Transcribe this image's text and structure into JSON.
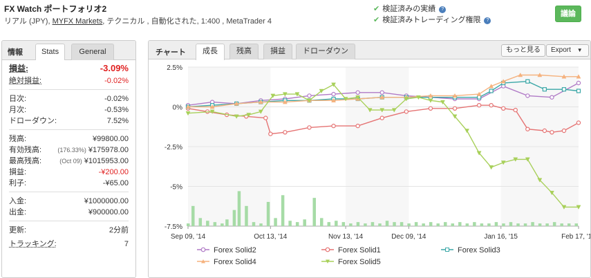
{
  "header": {
    "title": "FX Watch ポートフォリオ2",
    "sub_prefix": "リアル (JPY), ",
    "broker": "MYFX Markets",
    "sub_suffix": ", テクニカル , 自動化された, 1:400 , MetaTrader 4",
    "verified_track": "検証済みの実績",
    "verified_trading": "検証済みトレーディング権限",
    "discuss_button": "議論"
  },
  "left_panel": {
    "tab_label": "情報",
    "tabs": [
      "Stats",
      "General"
    ],
    "profit_label": "損益:",
    "profit_value": "-3.09%",
    "abs_profit_label": "絶対損益:",
    "abs_profit_value": "-0.02%",
    "daily_label": "日次:",
    "daily_value": "-0.02%",
    "monthly_label": "月次:",
    "monthly_value": "-0.53%",
    "drawdown_label": "ドローダウン:",
    "drawdown_value": "7.52%",
    "balance_label": "残高:",
    "balance_value": "¥99800.00",
    "equity_label": "有効残高:",
    "equity_pct": "(176.33%)",
    "equity_value": "¥175978.00",
    "highest_label": "最高残高:",
    "highest_date": "(Oct 09)",
    "highest_value": "¥1015953.00",
    "pl_label": "損益:",
    "pl_value": "-¥200.00",
    "interest_label": "利子:",
    "interest_value": "-¥65.00",
    "deposit_label": "入金:",
    "deposit_value": "¥1000000.00",
    "withdraw_label": "出金:",
    "withdraw_value": "¥900000.00",
    "updated_label": "更新:",
    "updated_value": "2分前",
    "tracking_label": "トラッキング:",
    "tracking_value": "7"
  },
  "right_panel": {
    "label": "チャート",
    "tabs": [
      "成長",
      "残高",
      "損益",
      "ドローダウン"
    ],
    "more_button": "もっと見る",
    "export_button": "Export"
  },
  "chart_data": {
    "type": "line",
    "ylim": [
      -7.5,
      2.5
    ],
    "y_ticks": [
      "2.5%",
      "0%",
      "-2.5%",
      "-5%",
      "-7.5%"
    ],
    "y_tick_values": [
      2.5,
      0,
      -2.5,
      -5,
      -7.5
    ],
    "x_ticks": [
      "Sep 09, '14",
      "Oct 13, '14",
      "Nov 13, '14",
      "Dec 09, '14",
      "Jan 16, '15",
      "Feb 17, '15"
    ],
    "x_tick_values": [
      0,
      34,
      65,
      91,
      129,
      161
    ],
    "colors": {
      "Forex Solid2": "#b07ac6",
      "Forex Solid1": "#e57373",
      "Forex Solid3": "#3aa7a7",
      "Forex Solid4": "#f5b27e",
      "Forex Solid5": "#a8d05a",
      "volume": "#a6dba6"
    },
    "series": [
      {
        "name": "Forex Solid2",
        "marker": "circle",
        "x": [
          0,
          10,
          20,
          30,
          40,
          50,
          60,
          70,
          80,
          90,
          100,
          110,
          120,
          130,
          140,
          150,
          161
        ],
        "values": [
          0.1,
          0.3,
          0.2,
          0.4,
          0.5,
          0.7,
          0.8,
          0.9,
          0.9,
          0.7,
          0.6,
          0.5,
          0.5,
          1.3,
          0.7,
          0.6,
          1.5
        ]
      },
      {
        "name": "Forex Solid1",
        "marker": "circle",
        "x": [
          0,
          8,
          16,
          24,
          32,
          34,
          40,
          50,
          60,
          70,
          80,
          90,
          100,
          110,
          120,
          125,
          130,
          135,
          140,
          147,
          150,
          155,
          161
        ],
        "values": [
          -0.1,
          -0.3,
          -0.5,
          -0.6,
          -0.7,
          -1.7,
          -1.6,
          -1.3,
          -1.2,
          -1.2,
          -0.7,
          -0.3,
          -0.1,
          -0.1,
          0.1,
          0.1,
          -0.1,
          -0.2,
          -1.4,
          -1.5,
          -1.6,
          -1.5,
          -1.0
        ]
      },
      {
        "name": "Forex Solid3",
        "marker": "square",
        "x": [
          0,
          10,
          20,
          30,
          40,
          50,
          60,
          70,
          80,
          90,
          100,
          110,
          120,
          125,
          130,
          140,
          147,
          155,
          161
        ],
        "values": [
          0.0,
          0.1,
          0.2,
          0.3,
          0.4,
          0.4,
          0.5,
          0.5,
          0.6,
          0.6,
          0.6,
          0.6,
          0.6,
          1.0,
          1.5,
          1.6,
          1.1,
          1.1,
          1.0
        ]
      },
      {
        "name": "Forex Solid4",
        "marker": "triangle",
        "x": [
          0,
          10,
          20,
          30,
          40,
          50,
          60,
          70,
          80,
          90,
          100,
          110,
          120,
          125,
          130,
          137,
          145,
          155,
          161
        ],
        "values": [
          0.0,
          0.0,
          0.2,
          0.3,
          0.3,
          0.4,
          0.4,
          0.5,
          0.6,
          0.6,
          0.7,
          0.7,
          0.8,
          1.3,
          1.6,
          2.0,
          2.0,
          1.9,
          1.9
        ]
      },
      {
        "name": "Forex Solid5",
        "marker": "triangle",
        "x": [
          0,
          10,
          20,
          25,
          30,
          35,
          40,
          45,
          50,
          55,
          60,
          65,
          70,
          75,
          80,
          85,
          90,
          95,
          100,
          105,
          110,
          115,
          120,
          125,
          130,
          135,
          140,
          145,
          150,
          155,
          161
        ],
        "values": [
          -0.4,
          -0.3,
          -0.6,
          -0.5,
          -0.3,
          0.7,
          0.8,
          0.8,
          0.4,
          1.0,
          1.4,
          0.5,
          0.6,
          -0.2,
          -0.2,
          -0.2,
          0.5,
          0.6,
          0.4,
          0.3,
          -0.6,
          -1.5,
          -2.9,
          -3.8,
          -3.5,
          -3.3,
          -3.3,
          -4.6,
          -5.4,
          -6.3,
          -6.3
        ]
      }
    ],
    "volume_x": [
      0,
      2,
      5,
      8,
      11,
      14,
      16,
      19,
      21,
      24,
      27,
      30,
      33,
      36,
      39,
      42,
      45,
      48,
      52,
      55,
      58,
      61,
      64,
      67,
      70,
      73,
      76,
      79,
      82,
      85,
      88,
      91,
      94,
      97,
      100,
      103,
      106,
      109,
      112,
      115,
      118,
      121,
      124,
      127,
      130,
      133,
      136,
      139,
      142,
      145,
      148,
      151,
      154,
      157,
      160
    ],
    "volume": [
      0.2,
      1.5,
      0.6,
      0.4,
      0.3,
      0.2,
      0.5,
      1.2,
      2.6,
      1.5,
      0.3,
      0.2,
      1.8,
      0.6,
      2.3,
      0.4,
      0.3,
      0.5,
      2.1,
      0.6,
      0.3,
      0.4,
      0.3,
      0.2,
      0.3,
      0.2,
      0.3,
      0.2,
      0.4,
      0.3,
      0.3,
      0.2,
      0.3,
      0.2,
      0.3,
      0.2,
      0.3,
      0.2,
      0.3,
      0.2,
      0.3,
      0.2,
      0.2,
      0.3,
      0.2,
      0.3,
      0.2,
      0.2,
      0.3,
      0.2,
      0.2,
      0.3,
      0.2,
      0.2,
      0.2
    ]
  }
}
